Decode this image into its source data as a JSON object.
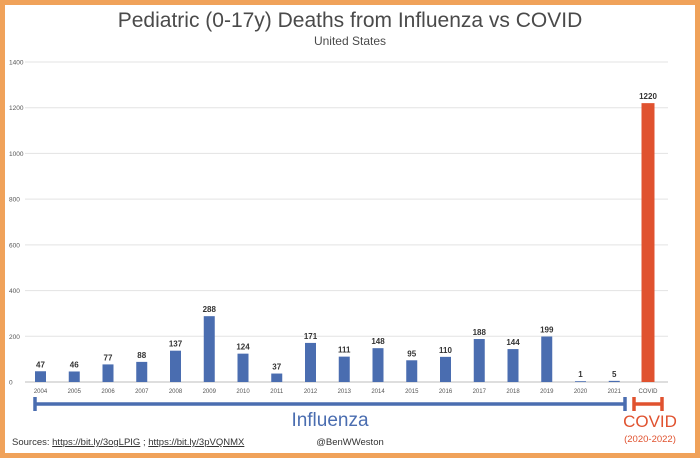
{
  "title": "Pediatric (0-17y) Deaths from Influenza vs COVID",
  "subtitle": "United States",
  "groups": {
    "influenza_label": "Influenza",
    "covid_label": "COVID",
    "covid_years": "(2020-2022)"
  },
  "footer": {
    "sources_prefix": "Sources:",
    "link1": "https://bit.ly/3ogLPIG",
    "separator": ";",
    "link2": "https://bit.ly/3pVQNMX",
    "handle": "@BenWWeston"
  },
  "colors": {
    "influenza": "#4a6db0",
    "covid": "#e0522f",
    "frame": "#f0a25a"
  },
  "chart_data": {
    "type": "bar",
    "title": "Pediatric (0-17y) Deaths from Influenza vs COVID",
    "subtitle": "United States",
    "categories": [
      "2004",
      "2005",
      "2006",
      "2007",
      "2008",
      "2009",
      "2010",
      "2011",
      "2012",
      "2013",
      "2014",
      "2015",
      "2016",
      "2017",
      "2018",
      "2019",
      "2020",
      "2021",
      "COVID"
    ],
    "series": [
      {
        "name": "Influenza",
        "values": [
          47,
          46,
          77,
          88,
          137,
          288,
          124,
          37,
          171,
          111,
          148,
          95,
          110,
          188,
          144,
          199,
          1,
          5,
          null
        ]
      },
      {
        "name": "COVID",
        "values": [
          null,
          null,
          null,
          null,
          null,
          null,
          null,
          null,
          null,
          null,
          null,
          null,
          null,
          null,
          null,
          null,
          null,
          null,
          1220
        ]
      }
    ],
    "yticks": [
      0,
      200,
      400,
      600,
      800,
      1000,
      1200,
      1400
    ],
    "ylim": [
      0,
      1400
    ],
    "grid": true,
    "legend": "none"
  }
}
